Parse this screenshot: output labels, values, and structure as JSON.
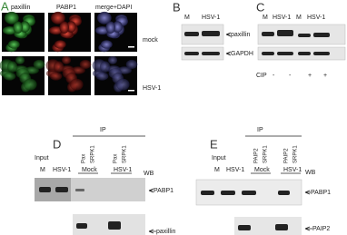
{
  "panel_a": {
    "letter": "A",
    "columns": [
      "paxillin",
      "PABP1",
      "merge+DAPI"
    ],
    "rows": [
      "mock",
      "HSV-1"
    ]
  },
  "panel_b": {
    "letter": "B",
    "lanes": [
      "M",
      "HSV-1"
    ],
    "bands": [
      "paxillin",
      "GAPDH"
    ]
  },
  "panel_c": {
    "letter": "C",
    "lanes": [
      "M",
      "HSV-1",
      "M",
      "HSV-1"
    ],
    "treatment_label": "CIP",
    "treatment": [
      "-",
      "-",
      "+",
      "+"
    ]
  },
  "panel_d": {
    "letter": "D",
    "ip_label": "IP",
    "input_label": "Input",
    "input_lanes": [
      "M",
      "HSV-1"
    ],
    "ip_antibodies": [
      "Pax",
      "SRPK1",
      "Pax",
      "SRPK1"
    ],
    "ip_groups": [
      "Mock",
      "HSV-1"
    ],
    "wb_label": "WB",
    "bands": [
      "PABP1",
      "paxillin"
    ]
  },
  "panel_e": {
    "letter": "E",
    "ip_label": "IP",
    "input_label": "Input",
    "input_lanes": [
      "M",
      "HSV-1"
    ],
    "ip_antibodies": [
      "PAIP2",
      "SRPK1",
      "PAIP2",
      "SRPK1"
    ],
    "ip_groups": [
      "Mock",
      "HSV-1"
    ],
    "wb_label": "WB",
    "bands": [
      "PABP1",
      "PAIP2"
    ]
  }
}
